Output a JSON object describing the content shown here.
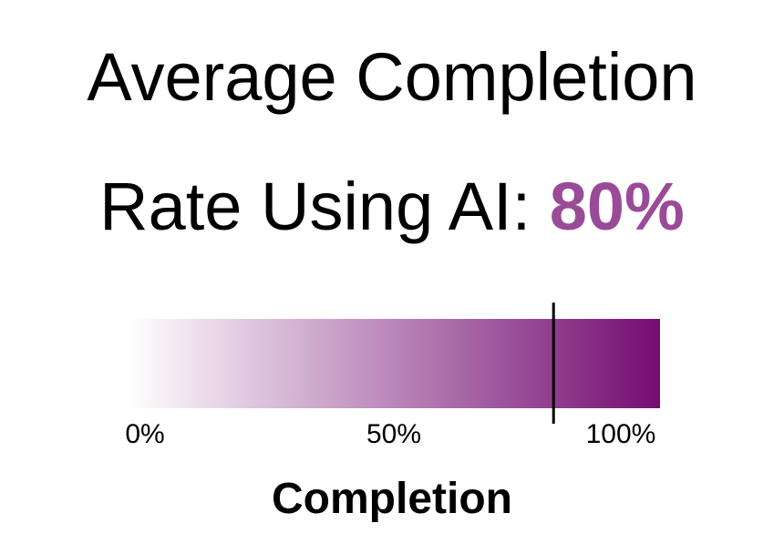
{
  "title_line_1": "Average Completion",
  "title_line_2_prefix": "Rate Using AI: ",
  "title_value": "80%",
  "colors": {
    "highlight": "#9a4b97",
    "gradient_start": "#ffffff",
    "gradient_end": "#740d72",
    "marker": "#000000"
  },
  "chart_data": {
    "type": "bar",
    "value": 80,
    "xlim": [
      0,
      100
    ],
    "ticks": [
      {
        "value": 0,
        "label": "0%"
      },
      {
        "value": 50,
        "label": "50%"
      },
      {
        "value": 100,
        "label": "100%"
      }
    ],
    "xlabel": "Completion",
    "grid": false
  }
}
